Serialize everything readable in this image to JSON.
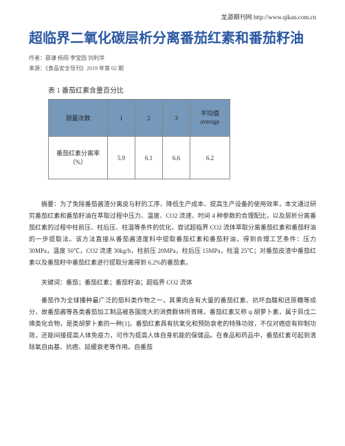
{
  "header": {
    "siteLabel": "龙源期刊网 http://www.qikan.com.cn"
  },
  "title": "超临界二氧化碳层析分离番茄红素和番茄籽油",
  "authors": "作者：薛谦 杨阳 李宝园 刘利萍",
  "source": "来源：《食品安全导刊》2019 年第 02 期",
  "table": {
    "caption": "表 1 番茄红素含量百分比",
    "headers": {
      "col1": "测量次数",
      "col2": "1",
      "col3": "2",
      "col4": "3",
      "col5_line1": "平均值",
      "col5_line2": "average"
    },
    "row": {
      "label_line1": "番茄红素分离率",
      "label_line2": "（%）",
      "v1": "5.9",
      "v2": "6.1",
      "v3": "6.6",
      "v4": "6.2"
    },
    "colors": {
      "header_bg": "#7598bb",
      "border": "#888888",
      "cell_bg": "#ffffff"
    }
  },
  "abstract": "摘要：为了免除番茄酱渣分离皮与籽的工序、降低生产成本、提高生产设备的使用效率，本文通过研究番茄红素和番茄籽油在萃取过程中压力、温度、CO2 流速、时间 4 种参数的合理配比，以及层析分离番茄红素的过程中柱前压、柱后压、柱温等条件的优化，尝试超临界 CO2 流体萃取分离番茄红素和番茄籽油的一步提取法。该方法直接从番茄酱渣废料中提取番茄红素和番茄籽油，得到合理工艺条件：压力 30MPa，温度 50℃，CO2 流速 30kg/h，柱前压 20MPa，柱后压 15MPa，柱温 25℃；对番茄皮渣中番茄红素以及番茄籽中番茄红素进行提取分离得到 6.2%的番茄素。",
  "keywords": "关键词：番茄；番茄红素；番茄籽油；超临界 CO2 流体",
  "bodyPara": "番茄作为全球播种最广泛的茄科类作物之一，其果肉含有大量的番茄红素、抗坏血酸和还原糖等成分，故番茄酱等各类番茄加工制品被各国庞大的消费群体所青睐。番茄红素又称 ψ 胡萝卜素，属于异戊二烯类化合物，是类胡萝卜素的一种[1]。番茄红素具有抗氧化和预防衰老的特殊功效，不仅对癌症有抑制功效，还能间接提高人体免疫力，可作为提高人体自身机能的保健品。在食品和药品中，番茄红素可起到清除氧自由基、抗癌、延缓衰老等作用。自番茄"
}
